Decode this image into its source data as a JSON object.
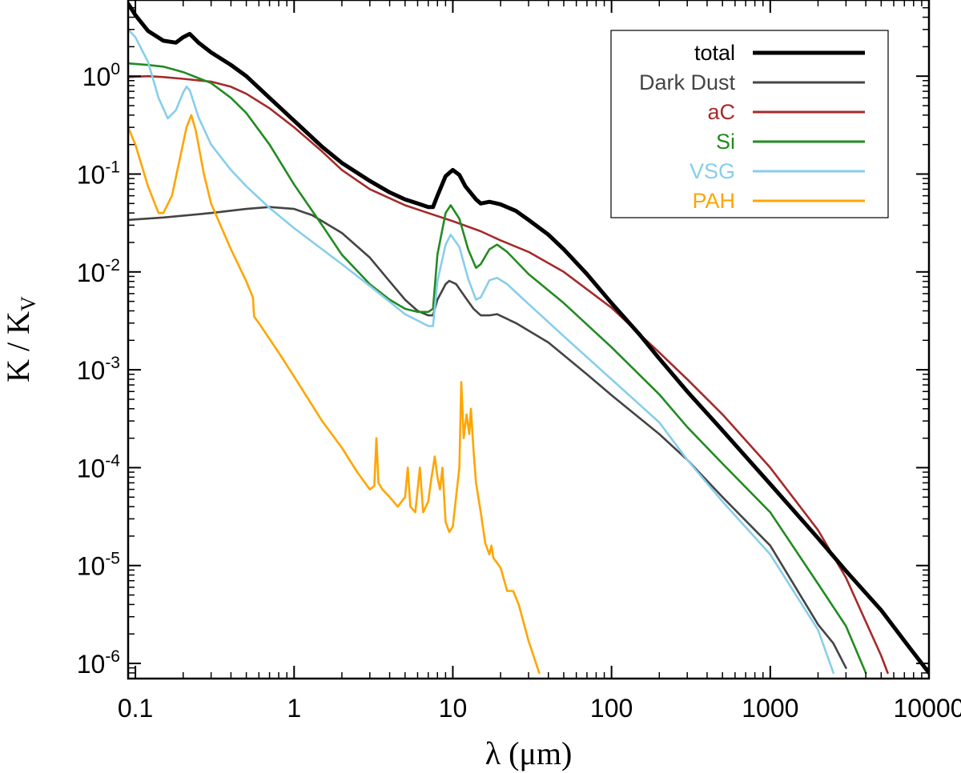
{
  "chart_data": {
    "type": "line",
    "x_scale": "log",
    "y_scale": "log",
    "xlim": [
      0.09,
      10000
    ],
    "ylim": [
      7e-07,
      6
    ],
    "xlabel": "λ (μm)",
    "ylabel_main": "K / K",
    "ylabel_sub": "V",
    "x_ticks": [
      {
        "value": 0.1,
        "label": "0.1"
      },
      {
        "value": 1,
        "label": "1"
      },
      {
        "value": 10,
        "label": "10"
      },
      {
        "value": 100,
        "label": "100"
      },
      {
        "value": 1000,
        "label": "1000"
      },
      {
        "value": 10000,
        "label": "10000"
      }
    ],
    "y_ticks": [
      {
        "value": 1,
        "base": "10",
        "exp": "0"
      },
      {
        "value": 0.1,
        "base": "10",
        "exp": "-1"
      },
      {
        "value": 0.01,
        "base": "10",
        "exp": "-2"
      },
      {
        "value": 0.001,
        "base": "10",
        "exp": "-3"
      },
      {
        "value": 0.0001,
        "base": "10",
        "exp": "-4"
      },
      {
        "value": 1e-05,
        "base": "10",
        "exp": "-5"
      },
      {
        "value": 1e-06,
        "base": "10",
        "exp": "-6"
      }
    ],
    "legend_position": "top-right",
    "series": [
      {
        "name": "total",
        "color": "#000000",
        "width": "bold",
        "points": [
          [
            0.09,
            5.5
          ],
          [
            0.1,
            4.2
          ],
          [
            0.12,
            2.9
          ],
          [
            0.15,
            2.3
          ],
          [
            0.18,
            2.2
          ],
          [
            0.2,
            2.5
          ],
          [
            0.22,
            2.7
          ],
          [
            0.25,
            2.2
          ],
          [
            0.3,
            1.75
          ],
          [
            0.4,
            1.3
          ],
          [
            0.5,
            1.0
          ],
          [
            0.7,
            0.6
          ],
          [
            1,
            0.35
          ],
          [
            1.5,
            0.19
          ],
          [
            2,
            0.13
          ],
          [
            3,
            0.085
          ],
          [
            4,
            0.065
          ],
          [
            5,
            0.055
          ],
          [
            6,
            0.05
          ],
          [
            7,
            0.046
          ],
          [
            7.5,
            0.046
          ],
          [
            8,
            0.06
          ],
          [
            9,
            0.095
          ],
          [
            10,
            0.11
          ],
          [
            11,
            0.098
          ],
          [
            12,
            0.075
          ],
          [
            14,
            0.055
          ],
          [
            15,
            0.05
          ],
          [
            17,
            0.052
          ],
          [
            19,
            0.05
          ],
          [
            20,
            0.049
          ],
          [
            25,
            0.042
          ],
          [
            30,
            0.034
          ],
          [
            40,
            0.024
          ],
          [
            50,
            0.017
          ],
          [
            70,
            0.0095
          ],
          [
            100,
            0.0048
          ],
          [
            150,
            0.0023
          ],
          [
            200,
            0.0013
          ],
          [
            300,
            0.0006
          ],
          [
            500,
            0.00024
          ],
          [
            700,
            0.00013
          ],
          [
            1000,
            6.8e-05
          ],
          [
            2000,
            1.9e-05
          ],
          [
            3000,
            8.8e-06
          ],
          [
            5000,
            3.5e-06
          ],
          [
            7000,
            1.7e-06
          ],
          [
            10000,
            8e-07
          ]
        ]
      },
      {
        "name": "Dark Dust",
        "color": "#444444",
        "width": "normal",
        "points": [
          [
            0.09,
            0.034
          ],
          [
            0.15,
            0.036
          ],
          [
            0.3,
            0.04
          ],
          [
            0.5,
            0.044
          ],
          [
            0.7,
            0.046
          ],
          [
            1,
            0.044
          ],
          [
            1.3,
            0.038
          ],
          [
            2,
            0.025
          ],
          [
            3,
            0.014
          ],
          [
            4,
            0.008
          ],
          [
            5,
            0.0052
          ],
          [
            6,
            0.004
          ],
          [
            7,
            0.0036
          ],
          [
            7.5,
            0.0036
          ],
          [
            8,
            0.0052
          ],
          [
            9,
            0.0075
          ],
          [
            9.5,
            0.0081
          ],
          [
            10.5,
            0.0075
          ],
          [
            12,
            0.0055
          ],
          [
            13.5,
            0.0042
          ],
          [
            15,
            0.0036
          ],
          [
            17,
            0.0036
          ],
          [
            19,
            0.0037
          ],
          [
            25,
            0.003
          ],
          [
            40,
            0.0019
          ],
          [
            70,
            0.0009
          ],
          [
            100,
            0.00055
          ],
          [
            200,
            0.00022
          ],
          [
            300,
            0.00012
          ],
          [
            500,
            5e-05
          ],
          [
            1000,
            1.6e-05
          ],
          [
            2000,
            2.5e-06
          ],
          [
            2500,
            1.6e-06
          ],
          [
            3000,
            9e-07
          ]
        ]
      },
      {
        "name": "aC",
        "color": "#a52a2a",
        "width": "normal",
        "points": [
          [
            0.09,
            0.98
          ],
          [
            0.12,
            1.0
          ],
          [
            0.15,
            0.98
          ],
          [
            0.2,
            0.94
          ],
          [
            0.3,
            0.88
          ],
          [
            0.4,
            0.78
          ],
          [
            0.5,
            0.66
          ],
          [
            0.7,
            0.47
          ],
          [
            1,
            0.3
          ],
          [
            1.5,
            0.17
          ],
          [
            2,
            0.11
          ],
          [
            3,
            0.07
          ],
          [
            5,
            0.048
          ],
          [
            7,
            0.04
          ],
          [
            10,
            0.033
          ],
          [
            15,
            0.026
          ],
          [
            20,
            0.021
          ],
          [
            30,
            0.016
          ],
          [
            50,
            0.01
          ],
          [
            100,
            0.0043
          ],
          [
            200,
            0.0015
          ],
          [
            300,
            0.0008
          ],
          [
            500,
            0.00035
          ],
          [
            1000,
            0.0001
          ],
          [
            2000,
            2.3e-05
          ],
          [
            3000,
            7.5e-06
          ],
          [
            5000,
            1.2e-06
          ],
          [
            5500,
            8e-07
          ]
        ]
      },
      {
        "name": "Si",
        "color": "#228b22",
        "width": "normal",
        "points": [
          [
            0.09,
            1.35
          ],
          [
            0.12,
            1.3
          ],
          [
            0.15,
            1.25
          ],
          [
            0.2,
            1.1
          ],
          [
            0.3,
            0.85
          ],
          [
            0.4,
            0.6
          ],
          [
            0.5,
            0.42
          ],
          [
            0.7,
            0.2
          ],
          [
            1,
            0.078
          ],
          [
            1.5,
            0.03
          ],
          [
            2,
            0.015
          ],
          [
            3,
            0.0075
          ],
          [
            4,
            0.0052
          ],
          [
            5,
            0.0042
          ],
          [
            6,
            0.0039
          ],
          [
            7,
            0.0039
          ],
          [
            7.5,
            0.0042
          ],
          [
            8,
            0.015
          ],
          [
            9,
            0.04
          ],
          [
            9.7,
            0.048
          ],
          [
            11,
            0.035
          ],
          [
            12.5,
            0.017
          ],
          [
            14,
            0.011
          ],
          [
            15,
            0.012
          ],
          [
            17,
            0.017
          ],
          [
            19,
            0.019
          ],
          [
            22,
            0.016
          ],
          [
            30,
            0.0095
          ],
          [
            50,
            0.0048
          ],
          [
            100,
            0.0017
          ],
          [
            200,
            0.00056
          ],
          [
            300,
            0.00026
          ],
          [
            500,
            0.00011
          ],
          [
            1000,
            3.5e-05
          ],
          [
            2000,
            6.5e-06
          ],
          [
            3000,
            2.4e-06
          ],
          [
            4000,
            8e-07
          ]
        ]
      },
      {
        "name": "VSG",
        "color": "#87ceeb",
        "width": "normal",
        "points": [
          [
            0.09,
            3.0
          ],
          [
            0.1,
            2.5
          ],
          [
            0.12,
            1.4
          ],
          [
            0.14,
            0.6
          ],
          [
            0.16,
            0.37
          ],
          [
            0.18,
            0.45
          ],
          [
            0.2,
            0.68
          ],
          [
            0.21,
            0.78
          ],
          [
            0.22,
            0.72
          ],
          [
            0.25,
            0.38
          ],
          [
            0.3,
            0.2
          ],
          [
            0.4,
            0.11
          ],
          [
            0.5,
            0.075
          ],
          [
            0.7,
            0.045
          ],
          [
            1,
            0.028
          ],
          [
            2,
            0.012
          ],
          [
            3,
            0.0072
          ],
          [
            5,
            0.0037
          ],
          [
            7,
            0.0028
          ],
          [
            7.5,
            0.0028
          ],
          [
            8,
            0.008
          ],
          [
            9,
            0.019
          ],
          [
            9.7,
            0.024
          ],
          [
            11,
            0.018
          ],
          [
            12.5,
            0.0085
          ],
          [
            14,
            0.0052
          ],
          [
            15,
            0.0055
          ],
          [
            17,
            0.0082
          ],
          [
            19,
            0.0087
          ],
          [
            22,
            0.0075
          ],
          [
            30,
            0.0047
          ],
          [
            50,
            0.0022
          ],
          [
            100,
            0.0008
          ],
          [
            200,
            0.00029
          ],
          [
            300,
            0.00012
          ],
          [
            500,
            4.5e-05
          ],
          [
            1000,
            1.3e-05
          ],
          [
            2000,
            2.2e-06
          ],
          [
            2500,
            8e-07
          ]
        ]
      },
      {
        "name": "PAH",
        "color": "#ffa500",
        "width": "normal",
        "points": [
          [
            0.09,
            0.3
          ],
          [
            0.1,
            0.2
          ],
          [
            0.12,
            0.075
          ],
          [
            0.14,
            0.04
          ],
          [
            0.15,
            0.04
          ],
          [
            0.17,
            0.06
          ],
          [
            0.19,
            0.14
          ],
          [
            0.21,
            0.3
          ],
          [
            0.225,
            0.4
          ],
          [
            0.24,
            0.28
          ],
          [
            0.27,
            0.1
          ],
          [
            0.3,
            0.05
          ],
          [
            0.35,
            0.028
          ],
          [
            0.4,
            0.017
          ],
          [
            0.5,
            0.008
          ],
          [
            0.55,
            0.0055
          ],
          [
            0.56,
            0.0035
          ],
          [
            0.6,
            0.003
          ],
          [
            0.8,
            0.0015
          ],
          [
            1,
            0.00085
          ],
          [
            1.5,
            0.0003
          ],
          [
            2,
            0.00016
          ],
          [
            2.5,
            9e-05
          ],
          [
            3.0,
            6e-05
          ],
          [
            3.2,
            6.5e-05
          ],
          [
            3.3,
            0.0002
          ],
          [
            3.4,
            7e-05
          ],
          [
            3.6,
            6e-05
          ],
          [
            4,
            5e-05
          ],
          [
            4.5,
            4e-05
          ],
          [
            5,
            5e-05
          ],
          [
            5.2,
            0.0001
          ],
          [
            5.4,
            4e-05
          ],
          [
            5.8,
            3.5e-05
          ],
          [
            6.2,
            0.0001
          ],
          [
            6.5,
            3.5e-05
          ],
          [
            7,
            4.5e-05
          ],
          [
            7.3,
            7.5e-05
          ],
          [
            7.7,
            0.00013
          ],
          [
            8,
            8e-05
          ],
          [
            8.3,
            6e-05
          ],
          [
            8.6,
            0.0001
          ],
          [
            9,
            2.8e-05
          ],
          [
            9.5,
            2.2e-05
          ],
          [
            10,
            2.5e-05
          ],
          [
            11,
            0.0001
          ],
          [
            11.3,
            0.00075
          ],
          [
            11.7,
            0.0002
          ],
          [
            12.2,
            0.00035
          ],
          [
            12.7,
            0.00022
          ],
          [
            13,
            0.0004
          ],
          [
            13.5,
            0.00015
          ],
          [
            14,
            7e-05
          ],
          [
            15,
            3.5e-05
          ],
          [
            16,
            1.7e-05
          ],
          [
            17,
            1.3e-05
          ],
          [
            17.5,
            1.6e-05
          ],
          [
            18,
            1.2e-05
          ],
          [
            20,
            9.5e-06
          ],
          [
            22,
            5.5e-06
          ],
          [
            24,
            5.5e-06
          ],
          [
            26,
            4e-06
          ],
          [
            30,
            1.7e-06
          ],
          [
            35,
            8e-07
          ]
        ]
      }
    ]
  }
}
